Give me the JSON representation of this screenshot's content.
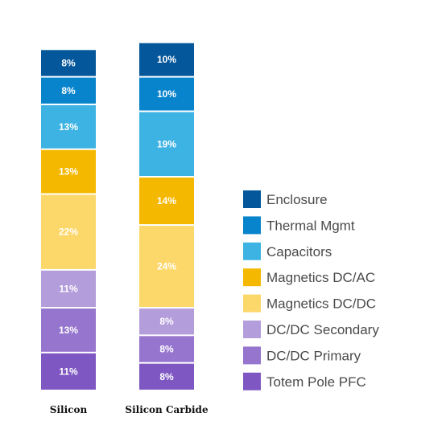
{
  "chart_data": {
    "type": "bar",
    "stacked": true,
    "categories": [
      "Silicon",
      "Silicon Carbide"
    ],
    "series": [
      {
        "name": "Totem Pole PFC",
        "color": "#7e57c2",
        "values": [
          11,
          8
        ],
        "labels": [
          "11%",
          "8%"
        ]
      },
      {
        "name": "DC/DC Primary",
        "color": "#9575cd",
        "values": [
          13,
          8
        ],
        "labels": [
          "13%",
          "8%"
        ]
      },
      {
        "name": "DC/DC Secondary",
        "color": "#b39ddb",
        "values": [
          11,
          8
        ],
        "labels": [
          "11%",
          "8%"
        ]
      },
      {
        "name": "Magnetics DC/DC",
        "color": "#fcd769",
        "values": [
          22,
          24
        ],
        "labels": [
          "22%",
          "24%"
        ]
      },
      {
        "name": "Magnetics DC/AC",
        "color": "#f5b800",
        "values": [
          13,
          14
        ],
        "labels": [
          "13%",
          "14%"
        ]
      },
      {
        "name": "Capacitors",
        "color": "#3db3e3",
        "values": [
          13,
          19
        ],
        "labels": [
          "13%",
          "19%"
        ]
      },
      {
        "name": "Thermal Mgmt",
        "color": "#0884cc",
        "values": [
          8,
          10
        ],
        "labels": [
          "8%",
          "10%"
        ]
      },
      {
        "name": "Enclosure",
        "color": "#04579b",
        "values": [
          8,
          10
        ],
        "labels": [
          "8%",
          "10%"
        ]
      }
    ],
    "legend_order": [
      "Enclosure",
      "Thermal Mgmt",
      "Capacitors",
      "Magnetics DC/AC",
      "Magnetics DC/DC",
      "DC/DC Secondary",
      "DC/DC Primary",
      "Totem Pole PFC"
    ],
    "legend_position": "right",
    "grid": false,
    "title": "",
    "xlabel": "",
    "ylabel": ""
  }
}
